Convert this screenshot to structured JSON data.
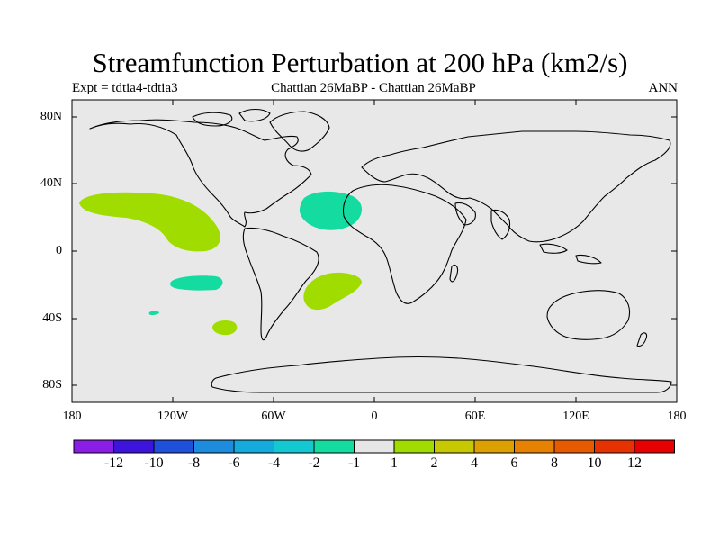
{
  "title": "Streamfunction Perturbation at 200 hPa (km2/s)",
  "subtitle_left": "Expt = tdtia4-tdtia3",
  "subtitle_center": "Chattian  26MaBP - Chattian  26MaBP",
  "subtitle_right": "ANN",
  "y_ticks": [
    "80N",
    "40N",
    "0",
    "40S",
    "80S"
  ],
  "x_ticks": [
    "180",
    "120W",
    "60W",
    "0",
    "60E",
    "120E",
    "180"
  ],
  "colorbar": {
    "labels": [
      "-12",
      "-10",
      "-8",
      "-6",
      "-4",
      "-2",
      "-1",
      "1",
      "2",
      "4",
      "6",
      "8",
      "10",
      "12"
    ],
    "colors": [
      "#8a1ee6",
      "#3c14dc",
      "#1e50dc",
      "#1e8cdc",
      "#14aadc",
      "#14c8d2",
      "#14dca0",
      "#e6e6e6",
      "#a0dc00",
      "#c8c800",
      "#dca000",
      "#e68200",
      "#e65a00",
      "#e63200",
      "#e60000"
    ]
  },
  "map": {
    "ocean_color": "#e8e8e8",
    "lon_range": [
      -180,
      180
    ],
    "lat_range": [
      -90,
      90
    ]
  },
  "anomalies": [
    {
      "name": "central-pacific-positive",
      "color": "#a0dc00",
      "level": "1 to 2"
    },
    {
      "name": "north-atlantic-negative",
      "color": "#14dca0",
      "level": "-2 to -1"
    },
    {
      "name": "south-atlantic-positive",
      "color": "#a0dc00",
      "level": "1 to 2"
    },
    {
      "name": "south-pacific-negative",
      "color": "#14dca0",
      "level": "-2 to -1"
    },
    {
      "name": "southeast-pacific-positive",
      "color": "#a0dc00",
      "level": "1 to 2"
    },
    {
      "name": "small-south-pacific-negative",
      "color": "#14dca0",
      "level": "-2 to -1"
    }
  ]
}
